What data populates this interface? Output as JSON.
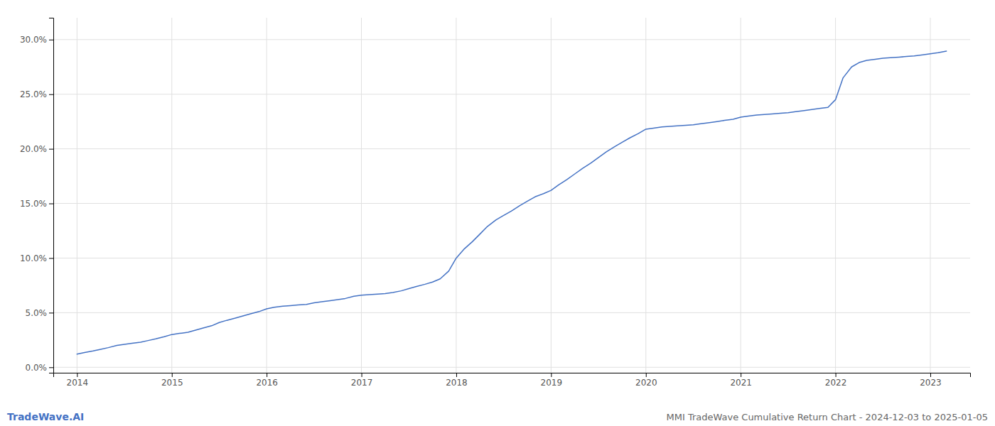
{
  "chart_data": {
    "type": "line",
    "title": "MMI TradeWave Cumulative Return Chart - 2024-12-03 to 2025-01-05",
    "annotations": [
      "TradeWave.AI"
    ],
    "color": "#4472c4",
    "x": [
      2014.0,
      2014.08,
      2014.17,
      2014.25,
      2014.33,
      2014.42,
      2014.5,
      2014.58,
      2014.67,
      2014.75,
      2014.83,
      2014.92,
      2015.0,
      2015.08,
      2015.17,
      2015.25,
      2015.33,
      2015.42,
      2015.5,
      2015.58,
      2015.67,
      2015.75,
      2015.83,
      2015.92,
      2016.0,
      2016.08,
      2016.17,
      2016.25,
      2016.33,
      2016.42,
      2016.5,
      2016.58,
      2016.67,
      2016.75,
      2016.83,
      2016.92,
      2017.0,
      2017.08,
      2017.17,
      2017.25,
      2017.33,
      2017.42,
      2017.5,
      2017.58,
      2017.67,
      2017.75,
      2017.83,
      2017.92,
      2018.0,
      2018.08,
      2018.17,
      2018.25,
      2018.33,
      2018.42,
      2018.5,
      2018.58,
      2018.67,
      2018.75,
      2018.83,
      2018.92,
      2019.0,
      2019.08,
      2019.17,
      2019.25,
      2019.33,
      2019.42,
      2019.5,
      2019.58,
      2019.67,
      2019.75,
      2019.83,
      2019.92,
      2020.0,
      2020.08,
      2020.17,
      2020.25,
      2020.33,
      2020.42,
      2020.5,
      2020.58,
      2020.67,
      2020.75,
      2020.83,
      2020.92,
      2021.0,
      2021.08,
      2021.17,
      2021.25,
      2021.33,
      2021.42,
      2021.5,
      2021.58,
      2021.67,
      2021.75,
      2021.83,
      2021.92,
      2022.0,
      2022.08,
      2022.17,
      2022.25,
      2022.33,
      2022.42,
      2022.5,
      2022.58,
      2022.67,
      2022.75,
      2022.83,
      2022.92,
      2023.0,
      2023.08,
      2023.17
    ],
    "values": [
      1.2,
      1.35,
      1.5,
      1.65,
      1.8,
      2.0,
      2.1,
      2.2,
      2.3,
      2.45,
      2.6,
      2.8,
      3.0,
      3.1,
      3.2,
      3.4,
      3.6,
      3.8,
      4.1,
      4.3,
      4.5,
      4.7,
      4.9,
      5.1,
      5.35,
      5.5,
      5.6,
      5.65,
      5.7,
      5.75,
      5.9,
      6.0,
      6.1,
      6.2,
      6.3,
      6.5,
      6.6,
      6.65,
      6.7,
      6.75,
      6.85,
      7.0,
      7.2,
      7.4,
      7.6,
      7.8,
      8.1,
      8.8,
      10.0,
      10.8,
      11.5,
      12.2,
      12.9,
      13.5,
      13.9,
      14.3,
      14.8,
      15.2,
      15.6,
      15.9,
      16.2,
      16.7,
      17.2,
      17.7,
      18.2,
      18.7,
      19.2,
      19.7,
      20.2,
      20.6,
      21.0,
      21.4,
      21.8,
      21.9,
      22.0,
      22.05,
      22.1,
      22.15,
      22.2,
      22.3,
      22.4,
      22.5,
      22.6,
      22.7,
      22.9,
      23.0,
      23.1,
      23.15,
      23.2,
      23.25,
      23.3,
      23.4,
      23.5,
      23.6,
      23.7,
      23.8,
      24.5,
      26.5,
      27.5,
      27.9,
      28.1,
      28.2,
      28.3,
      28.35,
      28.4,
      28.45,
      28.5,
      28.6,
      28.7,
      28.8,
      28.95
    ],
    "xlim": [
      2013.75,
      2023.42
    ],
    "xticks": [
      2014,
      2015,
      2016,
      2017,
      2018,
      2019,
      2020,
      2021,
      2022,
      2023
    ],
    "ylim": [
      -0.5,
      32.0
    ],
    "yticks": [
      {
        "value": 0.0,
        "label": "0.0%"
      },
      {
        "value": 5.0,
        "label": "5.0%"
      },
      {
        "value": 10.0,
        "label": "10.0%"
      },
      {
        "value": 15.0,
        "label": "15.0%"
      },
      {
        "value": 20.0,
        "label": "20.0%"
      },
      {
        "value": 25.0,
        "label": "25.0%"
      },
      {
        "value": 30.0,
        "label": "30.0%"
      }
    ],
    "grid": true
  }
}
